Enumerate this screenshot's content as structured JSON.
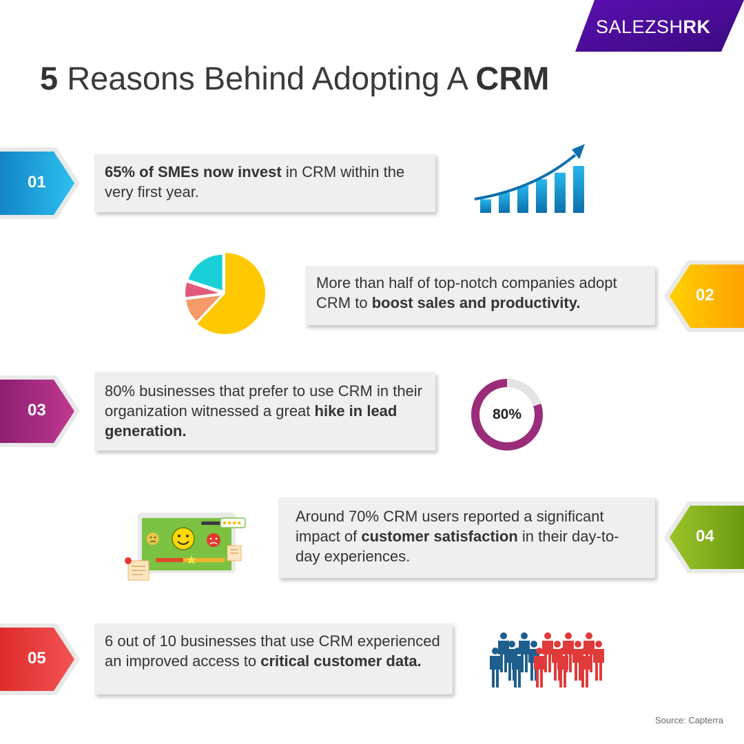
{
  "brand": {
    "name_part1": "SALEZSH",
    "name_part2": "RK"
  },
  "title": {
    "number": "5",
    "text": " Reasons Behind Adopting A ",
    "emphasis": "CRM"
  },
  "reasons": [
    {
      "num": "01",
      "bold": "65% of SMEs now invest",
      "rest": " in CRM within the very first year.",
      "color": "#1ba0dc"
    },
    {
      "num": "02",
      "pre": "More than half of top-notch companies adopt CRM to ",
      "bold": "boost sales and productivity.",
      "color": "#ffb400"
    },
    {
      "num": "03",
      "pre": "80% businesses that prefer to use CRM in their organization witnessed a great ",
      "bold": "hike in lead generation.",
      "color": "#a02a7e"
    },
    {
      "num": "04",
      "pre": "Around 70% CRM users reported a significant impact of ",
      "bold": "customer satisfaction",
      "rest": " in their day-to-day experiences.",
      "color": "#7faa19"
    },
    {
      "num": "05",
      "pre": "6 out of 10 businesses that use CRM experienced an improved access to ",
      "bold": "critical customer data.",
      "color": "#e63a3a"
    }
  ],
  "growth_chart": {
    "bars": [
      1,
      2,
      3,
      4,
      5,
      6
    ]
  },
  "pie_chart": {
    "slices": [
      {
        "label": "large",
        "value": 62,
        "color": "#ffc800"
      },
      {
        "label": "orange",
        "value": 11,
        "color": "#f59a68"
      },
      {
        "label": "pink",
        "value": 7,
        "color": "#e25a7a"
      },
      {
        "label": "teal",
        "value": 20,
        "color": "#1ad0d8"
      }
    ]
  },
  "ring": {
    "label": "80%",
    "percent": 80,
    "color": "#9b2c7a",
    "track": "#e3e3e3"
  },
  "satisfaction": {
    "stars_rating": "★★★★"
  },
  "people": {
    "blue_count": 4,
    "red_count": 6
  },
  "source": "Source: Capterra"
}
